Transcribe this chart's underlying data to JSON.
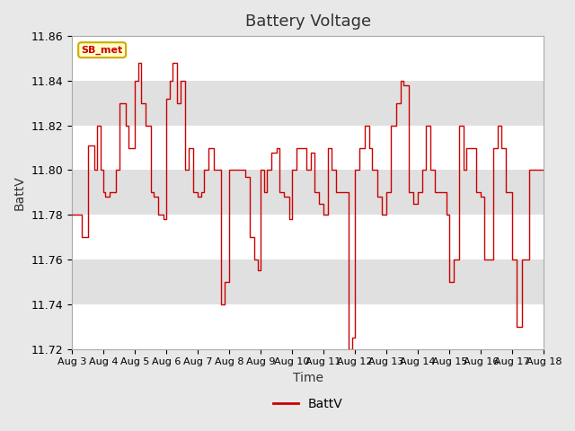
{
  "title": "Battery Voltage",
  "xlabel": "Time",
  "ylabel": "BattV",
  "legend_label": "BattV",
  "station_label": "SB_met",
  "line_color": "#cc0000",
  "fig_facecolor": "#e8e8e8",
  "plot_bg_color": "#f0f0f0",
  "ylim": [
    11.72,
    11.86
  ],
  "yticks": [
    11.72,
    11.74,
    11.76,
    11.78,
    11.8,
    11.82,
    11.84,
    11.86
  ],
  "xtick_labels": [
    "Aug 3",
    "Aug 4",
    "Aug 5",
    "Aug 6",
    "Aug 7",
    "Aug 8",
    "Aug 9",
    "Aug 10",
    "Aug 11",
    "Aug 12",
    "Aug 13",
    "Aug 14",
    "Aug 15",
    "Aug 16",
    "Aug 17",
    "Aug 18"
  ],
  "band_colors": [
    "#ffffff",
    "#e0e0e0"
  ],
  "x_values": [
    0,
    0,
    0.3,
    0.3,
    0.5,
    0.5,
    0.6,
    0.6,
    0.7,
    0.7,
    0.8,
    0.8,
    0.9,
    0.9,
    1.0,
    1.0,
    1.05,
    1.05,
    1.2,
    1.2,
    1.4,
    1.4,
    1.5,
    1.5,
    1.6,
    1.6,
    1.7,
    1.7,
    1.8,
    1.8,
    1.9,
    1.9,
    2.0,
    2.0,
    2.1,
    2.1,
    2.2,
    2.2,
    2.35,
    2.35,
    2.5,
    2.5,
    2.6,
    2.6,
    2.75,
    2.75,
    2.9,
    2.9,
    3.0,
    3.0,
    3.1,
    3.1,
    3.2,
    3.2,
    3.35,
    3.35,
    3.45,
    3.45,
    3.6,
    3.6,
    3.7,
    3.7,
    3.85,
    3.85,
    4.0,
    4.0,
    4.1,
    4.1,
    4.2,
    4.2,
    4.35,
    4.35,
    4.5,
    4.5,
    4.6,
    4.6,
    4.75,
    4.75,
    4.85,
    4.85,
    5.0,
    5.0,
    5.1,
    5.1,
    5.25,
    5.25,
    5.4,
    5.4,
    5.5,
    5.5,
    5.65,
    5.65,
    5.8,
    5.8,
    5.9,
    5.9,
    6.0,
    6.0,
    6.1,
    6.1,
    6.2,
    6.2,
    6.35,
    6.35,
    6.5,
    6.5,
    6.6,
    6.6,
    6.75,
    6.75,
    6.9,
    6.9,
    7.0,
    7.0,
    7.15,
    7.15,
    7.3,
    7.3,
    7.45,
    7.45,
    7.6,
    7.6,
    7.7,
    7.7,
    7.85,
    7.85,
    8.0,
    8.0,
    8.15,
    8.15,
    8.25,
    8.25,
    8.4,
    8.4,
    8.55,
    8.55,
    8.65,
    8.65,
    8.8,
    8.8,
    8.9,
    8.9,
    9.0,
    9.0,
    9.15,
    9.15,
    9.3,
    9.3,
    9.45,
    9.45,
    9.55,
    9.55,
    9.7,
    9.7,
    9.85,
    9.85,
    10.0,
    10.0,
    10.15,
    10.15,
    10.3,
    10.3,
    10.45,
    10.45,
    10.55,
    10.55,
    10.7,
    10.7,
    10.85,
    10.85,
    11.0,
    11.0,
    11.15,
    11.15,
    11.25,
    11.25,
    11.4,
    11.4,
    11.55,
    11.55,
    11.65,
    11.65,
    11.8,
    11.8,
    11.9,
    11.9,
    12.0,
    12.0,
    12.15,
    12.15,
    12.3,
    12.3,
    12.45,
    12.45,
    12.55,
    12.55,
    12.7,
    12.7,
    12.85,
    12.85,
    13.0,
    13.0,
    13.1,
    13.1,
    13.25,
    13.25,
    13.4,
    13.4,
    13.55,
    13.55,
    13.65,
    13.65,
    13.8,
    13.8,
    13.9,
    13.9,
    14.0,
    14.0,
    14.15,
    14.15,
    14.3,
    14.3,
    14.45,
    14.45,
    14.55,
    14.55,
    14.7,
    14.7,
    14.85,
    14.85,
    15.0,
    15.0,
    15.15,
    15.15,
    15.25,
    15.25,
    15.4,
    15.4,
    15.55,
    15.55,
    15.65,
    15.65,
    15.8,
    15.8,
    15.9,
    15.9
  ],
  "y_values": [
    11.78,
    11.78,
    11.78,
    11.77,
    11.77,
    11.811,
    11.811,
    11.811,
    11.811,
    11.8,
    11.8,
    11.82,
    11.82,
    11.8,
    11.8,
    11.79,
    11.79,
    11.788,
    11.788,
    11.79,
    11.79,
    11.8,
    11.8,
    11.83,
    11.83,
    11.83,
    11.83,
    11.82,
    11.82,
    11.81,
    11.81,
    11.81,
    11.81,
    11.84,
    11.84,
    11.848,
    11.848,
    11.83,
    11.83,
    11.82,
    11.82,
    11.79,
    11.79,
    11.788,
    11.788,
    11.78,
    11.78,
    11.778,
    11.778,
    11.832,
    11.832,
    11.84,
    11.84,
    11.848,
    11.848,
    11.83,
    11.83,
    11.84,
    11.84,
    11.8,
    11.8,
    11.81,
    11.81,
    11.79,
    11.79,
    11.788,
    11.788,
    11.79,
    11.79,
    11.8,
    11.8,
    11.81,
    11.81,
    11.8,
    11.8,
    11.8,
    11.8,
    11.74,
    11.74,
    11.75,
    11.75,
    11.8,
    11.8,
    11.8,
    11.8,
    11.8,
    11.8,
    11.8,
    11.8,
    11.797,
    11.797,
    11.77,
    11.77,
    11.76,
    11.76,
    11.755,
    11.755,
    11.8,
    11.8,
    11.79,
    11.79,
    11.8,
    11.8,
    11.808,
    11.808,
    11.81,
    11.81,
    11.79,
    11.79,
    11.788,
    11.788,
    11.778,
    11.778,
    11.8,
    11.8,
    11.81,
    11.81,
    11.81,
    11.81,
    11.8,
    11.8,
    11.808,
    11.808,
    11.79,
    11.79,
    11.785,
    11.785,
    11.78,
    11.78,
    11.81,
    11.81,
    11.8,
    11.8,
    11.79,
    11.79,
    11.79,
    11.79,
    11.79,
    11.79,
    11.72,
    11.72,
    11.725,
    11.725,
    11.8,
    11.8,
    11.81,
    11.81,
    11.82,
    11.82,
    11.81,
    11.81,
    11.8,
    11.8,
    11.788,
    11.788,
    11.78,
    11.78,
    11.79,
    11.79,
    11.82,
    11.82,
    11.83,
    11.83,
    11.84,
    11.84,
    11.838,
    11.838,
    11.79,
    11.79,
    11.785,
    11.785,
    11.79,
    11.79,
    11.8,
    11.8,
    11.82,
    11.82,
    11.8,
    11.8,
    11.79,
    11.79,
    11.79,
    11.79,
    11.79,
    11.79,
    11.78,
    11.78,
    11.75,
    11.75,
    11.76,
    11.76,
    11.82,
    11.82,
    11.8,
    11.8,
    11.81,
    11.81,
    11.81,
    11.81,
    11.79,
    11.79,
    11.788,
    11.788,
    11.76,
    11.76,
    11.76,
    11.76,
    11.81,
    11.81,
    11.82,
    11.82,
    11.81,
    11.81,
    11.79,
    11.79,
    11.79,
    11.79,
    11.76,
    11.76,
    11.73,
    11.73,
    11.76,
    11.76,
    11.76,
    11.76,
    11.8,
    11.8,
    11.8,
    11.8,
    11.8,
    11.8,
    11.8,
    11.8,
    11.81,
    11.81,
    11.8,
    11.8,
    11.8,
    11.8,
    11.79,
    11.79,
    11.8,
    11.8,
    11.808,
    11.808,
    11.81
  ]
}
